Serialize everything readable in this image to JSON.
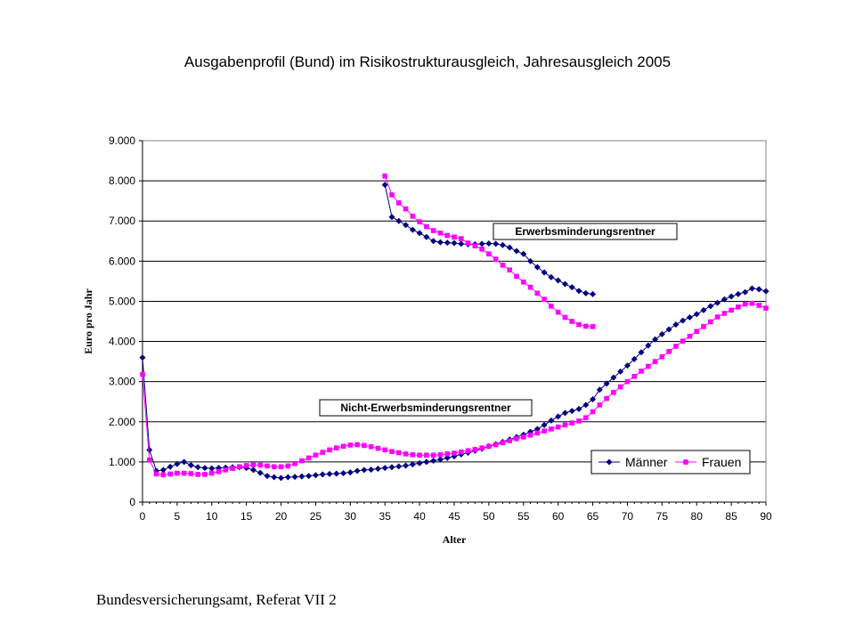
{
  "chart_data": {
    "type": "line",
    "title": "Ausgabenprofil (Bund) im Risikostrukturausgleich, Jahresausgleich 2005",
    "xlabel": "Alter",
    "ylabel": "Euro pro Jahr",
    "xlim": [
      0,
      90
    ],
    "ylim": [
      0,
      9000
    ],
    "x_ticks": [
      "0",
      "5",
      "10",
      "15",
      "20",
      "25",
      "30",
      "35",
      "40",
      "45",
      "50",
      "55",
      "60",
      "65",
      "70",
      "75",
      "80",
      "85",
      "90"
    ],
    "y_ticks": [
      "0",
      "1.000",
      "2.000",
      "3.000",
      "4.000",
      "5.000",
      "6.000",
      "7.000",
      "8.000",
      "9.000"
    ],
    "grid": "horizontal",
    "legend_position": "bottom-right",
    "annotations": [
      "Erwerbsminderungsrentner",
      "Nicht-Erwerbsminderungsrentner"
    ],
    "series": [
      {
        "name": "Männer",
        "group": "Nicht-Erwerbsminderungsrentner",
        "color": "#000080",
        "marker": "diamond",
        "x": [
          0,
          1,
          2,
          3,
          4,
          5,
          6,
          7,
          8,
          9,
          10,
          11,
          12,
          13,
          14,
          15,
          16,
          17,
          18,
          19,
          20,
          21,
          22,
          23,
          24,
          25,
          26,
          27,
          28,
          29,
          30,
          31,
          32,
          33,
          34,
          35,
          36,
          37,
          38,
          39,
          40,
          41,
          42,
          43,
          44,
          45,
          46,
          47,
          48,
          49,
          50,
          51,
          52,
          53,
          54,
          55,
          56,
          57,
          58,
          59,
          60,
          61,
          62,
          63,
          64,
          65,
          66,
          67,
          68,
          69,
          70,
          71,
          72,
          73,
          74,
          75,
          76,
          77,
          78,
          79,
          80,
          81,
          82,
          83,
          84,
          85,
          86,
          87,
          88,
          89,
          90
        ],
        "y": [
          3600,
          1300,
          780,
          800,
          880,
          950,
          1000,
          920,
          870,
          850,
          840,
          850,
          860,
          870,
          870,
          850,
          800,
          730,
          650,
          620,
          600,
          620,
          630,
          640,
          650,
          670,
          690,
          700,
          710,
          720,
          740,
          780,
          800,
          810,
          830,
          850,
          870,
          890,
          910,
          940,
          970,
          1000,
          1030,
          1060,
          1100,
          1140,
          1190,
          1230,
          1280,
          1330,
          1390,
          1440,
          1500,
          1560,
          1620,
          1680,
          1750,
          1820,
          1920,
          2030,
          2130,
          2220,
          2270,
          2320,
          2420,
          2560,
          2800,
          2950,
          3100,
          3250,
          3400,
          3560,
          3730,
          3900,
          4050,
          4180,
          4300,
          4420,
          4520,
          4600,
          4680,
          4780,
          4880,
          4960,
          5050,
          5120,
          5180,
          5230,
          5320,
          5300,
          5250
        ]
      },
      {
        "name": "Frauen",
        "group": "Nicht-Erwerbsminderungsrentner",
        "color": "#FF00FF",
        "marker": "square",
        "x": [
          0,
          1,
          2,
          3,
          4,
          5,
          6,
          7,
          8,
          9,
          10,
          11,
          12,
          13,
          14,
          15,
          16,
          17,
          18,
          19,
          20,
          21,
          22,
          23,
          24,
          25,
          26,
          27,
          28,
          29,
          30,
          31,
          32,
          33,
          34,
          35,
          36,
          37,
          38,
          39,
          40,
          41,
          42,
          43,
          44,
          45,
          46,
          47,
          48,
          49,
          50,
          51,
          52,
          53,
          54,
          55,
          56,
          57,
          58,
          59,
          60,
          61,
          62,
          63,
          64,
          65,
          66,
          67,
          68,
          69,
          70,
          71,
          72,
          73,
          74,
          75,
          76,
          77,
          78,
          79,
          80,
          81,
          82,
          83,
          84,
          85,
          86,
          87,
          88,
          89,
          90
        ],
        "y": [
          3180,
          1050,
          700,
          680,
          700,
          720,
          720,
          710,
          690,
          690,
          720,
          760,
          800,
          840,
          880,
          910,
          930,
          920,
          900,
          880,
          880,
          900,
          960,
          1030,
          1100,
          1170,
          1240,
          1300,
          1350,
          1390,
          1420,
          1430,
          1410,
          1380,
          1340,
          1300,
          1260,
          1230,
          1200,
          1180,
          1170,
          1170,
          1170,
          1180,
          1200,
          1220,
          1250,
          1280,
          1310,
          1350,
          1390,
          1430,
          1480,
          1530,
          1580,
          1620,
          1670,
          1720,
          1770,
          1820,
          1870,
          1920,
          1970,
          2020,
          2100,
          2250,
          2420,
          2580,
          2730,
          2870,
          3000,
          3130,
          3260,
          3380,
          3500,
          3620,
          3750,
          3880,
          4010,
          4130,
          4250,
          4370,
          4490,
          4610,
          4700,
          4780,
          4860,
          4930,
          4950,
          4900,
          4830
        ]
      },
      {
        "name": "Männer",
        "group": "Erwerbsminderungsrentner",
        "color": "#000080",
        "marker": "diamond",
        "x": [
          35,
          36,
          37,
          38,
          39,
          40,
          41,
          42,
          43,
          44,
          45,
          46,
          47,
          48,
          49,
          50,
          51,
          52,
          53,
          54,
          55,
          56,
          57,
          58,
          59,
          60,
          61,
          62,
          63,
          64,
          65
        ],
        "y": [
          7900,
          7100,
          7000,
          6900,
          6780,
          6700,
          6600,
          6500,
          6470,
          6460,
          6450,
          6430,
          6420,
          6420,
          6430,
          6440,
          6430,
          6400,
          6340,
          6250,
          6180,
          6000,
          5850,
          5720,
          5600,
          5520,
          5430,
          5350,
          5260,
          5200,
          5180
        ]
      },
      {
        "name": "Frauen",
        "group": "Erwerbsminderungsrentner",
        "color": "#FF00FF",
        "marker": "square",
        "x": [
          35,
          36,
          37,
          38,
          39,
          40,
          41,
          42,
          43,
          44,
          45,
          46,
          47,
          48,
          49,
          50,
          51,
          52,
          53,
          54,
          55,
          56,
          57,
          58,
          59,
          60,
          61,
          62,
          63,
          64,
          65
        ],
        "y": [
          8120,
          7650,
          7450,
          7300,
          7120,
          6980,
          6860,
          6760,
          6700,
          6640,
          6600,
          6560,
          6450,
          6380,
          6300,
          6180,
          6050,
          5900,
          5780,
          5620,
          5480,
          5350,
          5200,
          5050,
          4880,
          4730,
          4600,
          4500,
          4420,
          4380,
          4370
        ]
      }
    ]
  },
  "footer": {
    "source": "Bundesversicherungsamt, Referat VII 2"
  }
}
